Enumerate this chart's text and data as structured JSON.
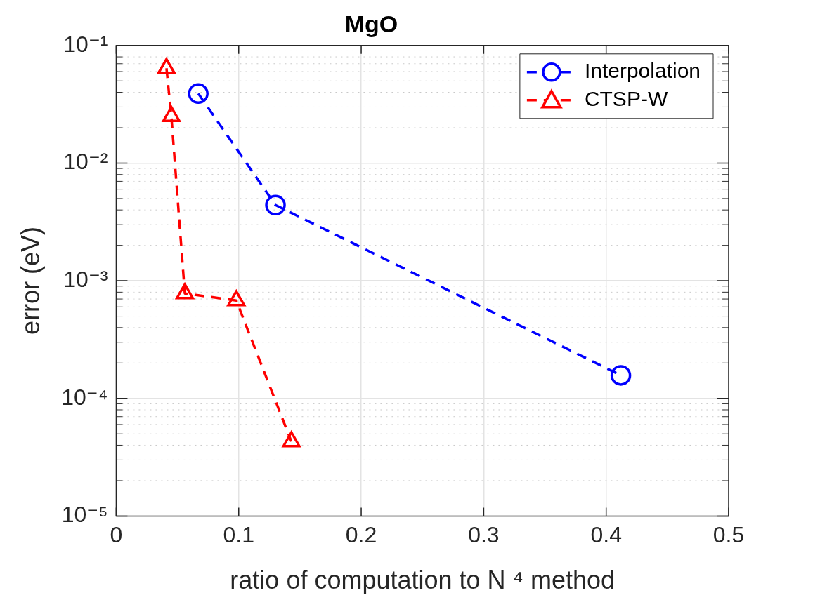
{
  "chart_data": {
    "type": "line",
    "title": "MgO",
    "xlabel": "ratio of computation to N ⁴ method",
    "ylabel": "error (eV)",
    "log": "y",
    "grid": true,
    "legend": "top right",
    "line_style": "dashed",
    "xlim": [
      0,
      0.5
    ],
    "xticks": [
      0,
      0.1,
      0.2,
      0.3,
      0.4,
      0.5
    ],
    "ylim": [
      1e-05,
      0.1
    ],
    "yticks": [
      {
        "value": 1e-05,
        "label": "10⁻⁵"
      },
      {
        "value": 0.0001,
        "label": "10⁻⁴"
      },
      {
        "value": 0.001,
        "label": "10⁻³"
      },
      {
        "value": 0.01,
        "label": "10⁻²"
      },
      {
        "value": 0.1,
        "label": "10⁻¹"
      }
    ],
    "series": [
      {
        "name": "Interpolation",
        "color": "#0000ff",
        "marker": "circle",
        "x": [
          0.067,
          0.13,
          0.412
        ],
        "values": [
          0.039,
          0.0044,
          0.000157
        ]
      },
      {
        "name": "CTSP-W",
        "color": "#ff0000",
        "marker": "triangle",
        "x": [
          0.041,
          0.045,
          0.056,
          0.098,
          0.143
        ],
        "values": [
          0.064,
          0.025,
          0.00078,
          0.00068,
          4.3e-05
        ]
      }
    ]
  }
}
